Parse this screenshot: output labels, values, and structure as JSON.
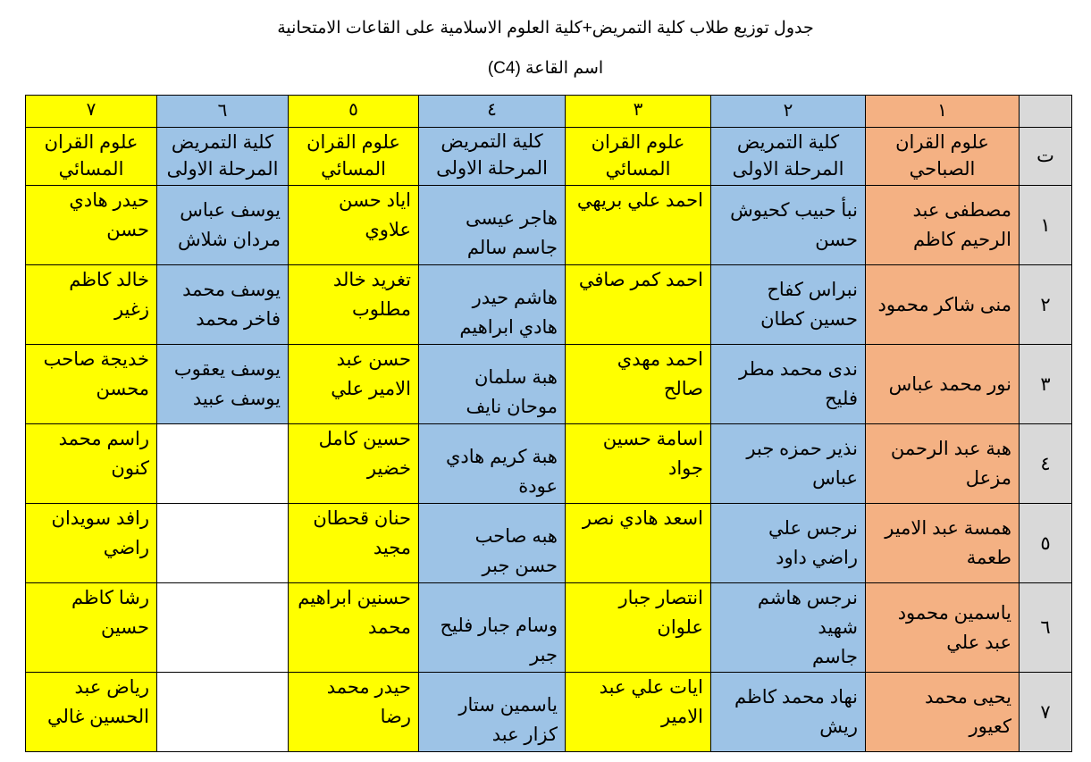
{
  "title": "جدول توزيع طلاب كلية التمريض+كلية العلوم الاسلامية على القاعات الامتحانية",
  "subtitle": "اسم القاعة  (C4)",
  "colors": {
    "orange": "#f4b183",
    "blue": "#9dc3e6",
    "yellow": "#ffff00",
    "gray": "#d9d9d9"
  },
  "table": {
    "index_header": "ت",
    "column_numbers": [
      "١",
      "٢",
      "٣",
      "٤",
      "٥",
      "٦",
      "٧"
    ],
    "column_headers": [
      "علوم القران\nالصباحي",
      "كلية التمريض\nالمرحلة الاولى",
      "علوم القران\nالمسائي",
      "كلية التمريض\nالمرحلة الاولى",
      "علوم القران\nالمسائي",
      "كلية التمريض\nالمرحلة الاولى",
      "علوم القران\nالمسائي"
    ],
    "rows": [
      {
        "index": "١",
        "cells": [
          "مصطفى عبد\nالرحيم كاظم",
          "نبأ حبيب كحيوش\nحسن",
          "احمد علي بريهي",
          "هاجر عيسى\nجاسم سالم",
          "اياد حسن\nعلاوي",
          "يوسف عباس\nمردان شلاش",
          "حيدر هادي\nحسن"
        ]
      },
      {
        "index": "٢",
        "cells": [
          "منى شاكر محمود",
          "نبراس كفاح\nحسين كطان",
          "احمد كمر صافي",
          "هاشم حيدر\nهادي ابراهيم",
          "تغريد خالد\nمطلوب",
          "يوسف محمد\nفاخر محمد",
          "خالد كاظم\nزغير"
        ]
      },
      {
        "index": "٣",
        "cells": [
          "نور محمد عباس",
          "ندى محمد مطر\nفليح",
          "احمد مهدي\nصالح",
          "هبة سلمان\nموحان نايف",
          "حسن عبد\nالامير علي",
          "يوسف يعقوب\nيوسف عبيد",
          "خديجة صاحب\nمحسن"
        ]
      },
      {
        "index": "٤",
        "cells": [
          "هبة عبد الرحمن\nمزعل",
          "نذير حمزه جبر\nعباس",
          "اسامة حسين\nجواد",
          "هبة كريم هادي\nعودة",
          "حسين كامل\nخضير",
          "",
          "راسم محمد\nكنون"
        ]
      },
      {
        "index": "٥",
        "cells": [
          "همسة عبد الامير\nطعمة",
          "نرجس علي\nراضي داود",
          "اسعد هادي نصر",
          "هبه صاحب\nحسن جبر",
          "حنان قحطان\nمجيد",
          "",
          "رافد سويدان\nراضي"
        ]
      },
      {
        "index": "٦",
        "cells": [
          "ياسمين محمود\nعبد علي",
          "نرجس هاشم شهيد\nجاسم",
          "انتصار جبار\nعلوان",
          "وسام جبار فليح\nجبر",
          "حسنين ابراهيم\nمحمد",
          "",
          "رشا كاظم\nحسين"
        ]
      },
      {
        "index": "٧",
        "cells": [
          "يحيى محمد\nكعيور",
          "نهاد محمد كاظم\nريش",
          "ايات علي عبد\nالامير",
          "ياسمين ستار\nكزار عبد",
          "حيدر محمد\nرضا",
          "",
          "رياض عبد\nالحسين غالي"
        ]
      }
    ]
  }
}
